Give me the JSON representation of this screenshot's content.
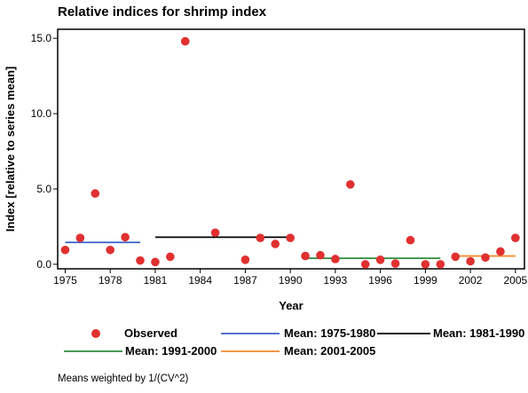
{
  "chart_data": {
    "type": "scatter",
    "title": "Relative indices for shrimp index",
    "xlabel": "Year",
    "ylabel": "Index [relative to series mean]",
    "xlim": [
      1974.5,
      2005.6
    ],
    "ylim": [
      -0.3,
      15.6
    ],
    "x_ticks": [
      1975,
      1978,
      1981,
      1984,
      1987,
      1990,
      1993,
      1996,
      1999,
      2002,
      2005
    ],
    "x_tick_labels": [
      "1975",
      "1978",
      "1981",
      "1984",
      "1987",
      "1990",
      "1993",
      "1996",
      "1999",
      "2002",
      "2005"
    ],
    "y_ticks": [
      0,
      5,
      10,
      15
    ],
    "y_tick_labels": [
      "0.0",
      "5.0",
      "10.0",
      "15.0"
    ],
    "grid": false,
    "legend_position": "bottom",
    "observed": {
      "name": "Observed",
      "color": "#e03030",
      "x": [
        1975,
        1976,
        1977,
        1978,
        1979,
        1980,
        1981,
        1982,
        1983,
        1985,
        1987,
        1988,
        1989,
        1990,
        1991,
        1992,
        1993,
        1994,
        1995,
        1996,
        1997,
        1998,
        1999,
        2000,
        2001,
        2002,
        2003,
        2004,
        2005
      ],
      "y": [
        0.95,
        1.75,
        4.7,
        0.95,
        1.8,
        0.25,
        0.15,
        0.5,
        14.8,
        2.1,
        0.3,
        1.75,
        1.35,
        1.75,
        0.55,
        0.6,
        0.35,
        5.3,
        0.0,
        0.3,
        0.05,
        1.6,
        0.0,
        0.0,
        0.5,
        0.2,
        0.45,
        0.85,
        1.75
      ]
    },
    "means": [
      {
        "name": "Mean: 1975-1980",
        "color": "#3a5fcd",
        "x_start": 1975,
        "x_end": 1980,
        "value": 1.45
      },
      {
        "name": "Mean: 1981-1990",
        "color": "#000000",
        "x_start": 1981,
        "x_end": 1990,
        "value": 1.8
      },
      {
        "name": "Mean: 1991-2000",
        "color": "#2e8b3a",
        "x_start": 1991,
        "x_end": 2000,
        "value": 0.4
      },
      {
        "name": "Mean: 2001-2005",
        "color": "#f08a30",
        "x_start": 2001,
        "x_end": 2005,
        "value": 0.55
      }
    ],
    "footnote": "Means weighted by 1/(CV^2)"
  }
}
